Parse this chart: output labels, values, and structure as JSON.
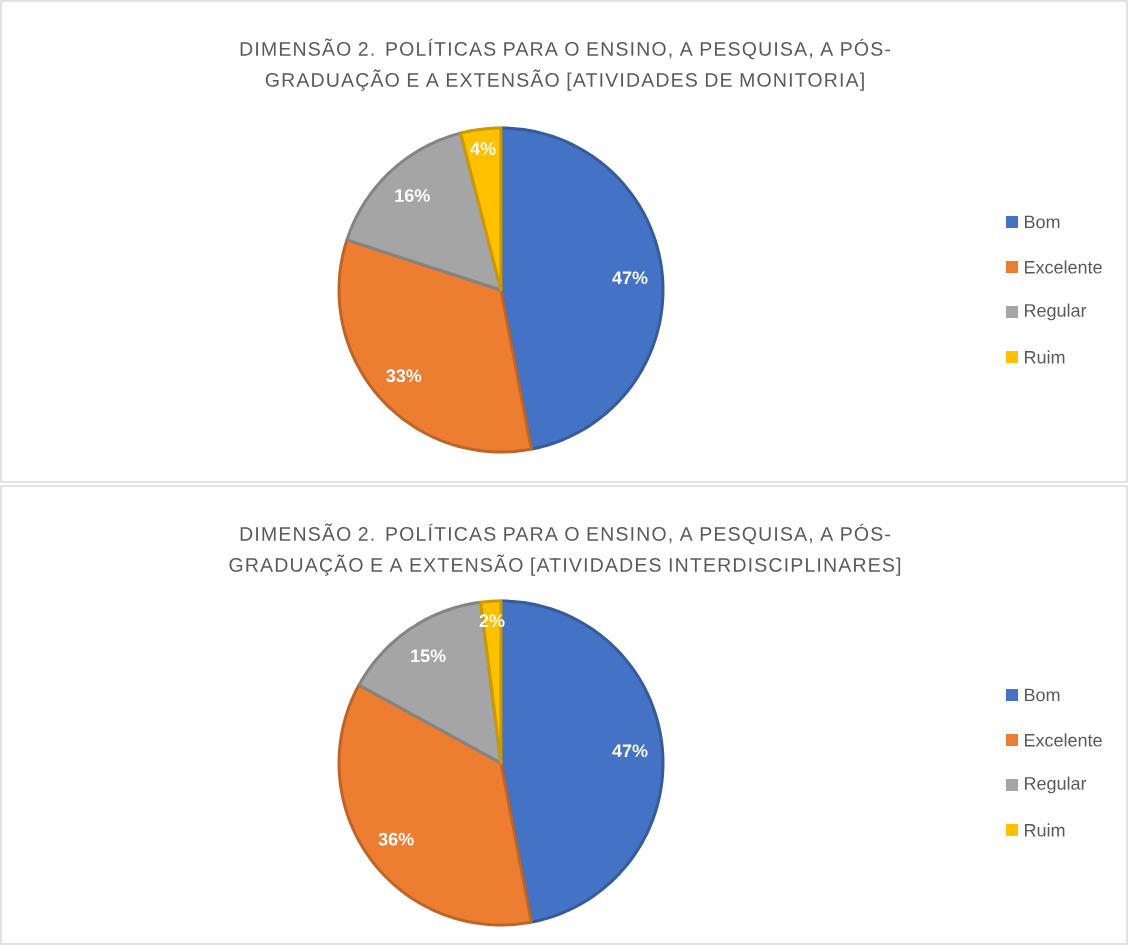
{
  "chart_data": [
    {
      "type": "pie",
      "title": "DIMENSÃO 2. POLÍTICAS PARA O ENSINO, A PESQUISA, A PÓS-GRADUAÇÃO E A EXTENSÃO [ATIVIDADES DE MONITORIA]",
      "categories": [
        "Bom",
        "Excelente",
        "Regular",
        "Ruim"
      ],
      "values": [
        47,
        33,
        16,
        4
      ],
      "value_labels": [
        "47%",
        "33%",
        "16%",
        "4%"
      ],
      "colors": [
        "#4472c4",
        "#ed7d31",
        "#a5a5a5",
        "#ffc000"
      ],
      "legend": "right"
    },
    {
      "type": "pie",
      "title": "DIMENSÃO 2. POLÍTICAS PARA O ENSINO, A PESQUISA, A PÓS-GRADUAÇÃO E A EXTENSÃO [ATIVIDADES INTERDISCIPLINARES]",
      "categories": [
        "Bom",
        "Excelente",
        "Regular",
        "Ruim"
      ],
      "values": [
        47,
        36,
        15,
        2
      ],
      "value_labels": [
        "47%",
        "36%",
        "15%",
        "2%"
      ],
      "colors": [
        "#4472c4",
        "#ed7d31",
        "#a5a5a5",
        "#ffc000"
      ],
      "legend": "right"
    }
  ]
}
